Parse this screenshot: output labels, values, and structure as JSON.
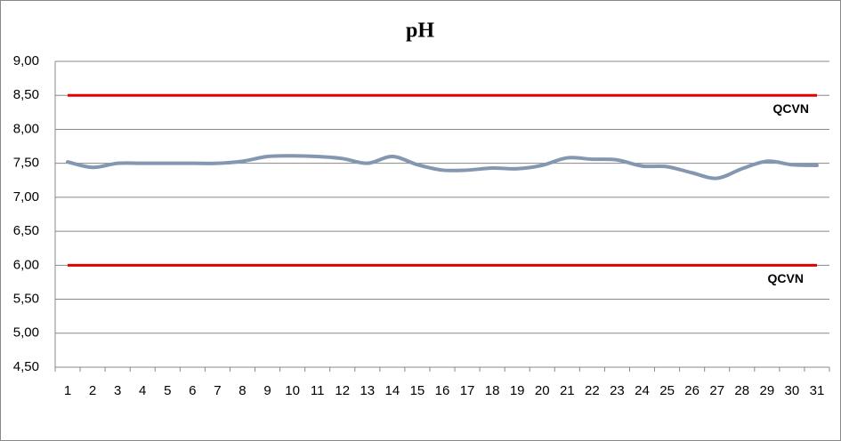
{
  "chart_data": {
    "type": "line",
    "title": "pH",
    "categories": [
      "1",
      "2",
      "3",
      "4",
      "5",
      "6",
      "7",
      "8",
      "9",
      "10",
      "11",
      "12",
      "13",
      "14",
      "15",
      "16",
      "17",
      "18",
      "19",
      "20",
      "21",
      "22",
      "23",
      "24",
      "25",
      "26",
      "27",
      "28",
      "29",
      "30",
      "31"
    ],
    "series": [
      {
        "name": "pH",
        "color": "#8497b0",
        "values": [
          7.52,
          7.44,
          7.5,
          7.5,
          7.5,
          7.5,
          7.5,
          7.53,
          7.6,
          7.61,
          7.6,
          7.57,
          7.5,
          7.6,
          7.48,
          7.4,
          7.4,
          7.43,
          7.42,
          7.47,
          7.58,
          7.56,
          7.55,
          7.46,
          7.45,
          7.36,
          7.28,
          7.42,
          7.53,
          7.48,
          7.47
        ]
      }
    ],
    "reference_lines": [
      {
        "value": 8.5,
        "label": "QCVN",
        "color": "#e00000"
      },
      {
        "value": 6.0,
        "label": "QCVN",
        "color": "#e00000"
      }
    ],
    "ylim": [
      4.5,
      9.0
    ],
    "yticks": [
      {
        "value": 4.5,
        "label": "4,50"
      },
      {
        "value": 5.0,
        "label": "5,00"
      },
      {
        "value": 5.5,
        "label": "5,50"
      },
      {
        "value": 6.0,
        "label": "6,00"
      },
      {
        "value": 6.5,
        "label": "6,50"
      },
      {
        "value": 7.0,
        "label": "7,00"
      },
      {
        "value": 7.5,
        "label": "7,50"
      },
      {
        "value": 8.0,
        "label": "8,00"
      },
      {
        "value": 8.5,
        "label": "8,50"
      },
      {
        "value": 9.0,
        "label": "9,00"
      }
    ],
    "grid": true
  }
}
